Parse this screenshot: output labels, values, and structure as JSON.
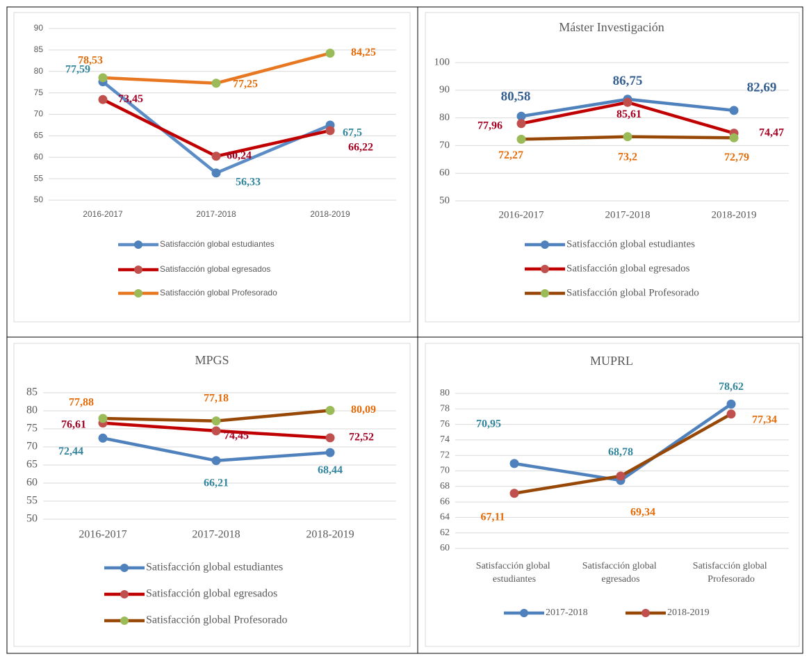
{
  "chart_data": [
    {
      "type": "line",
      "legend": "bottom",
      "categories": [
        "2016-2017",
        "2017-2018",
        "2018-2019"
      ],
      "ylim": [
        50,
        90
      ],
      "yticks": [
        50,
        55,
        60,
        65,
        70,
        75,
        80,
        85,
        90
      ],
      "grid": true,
      "series": [
        {
          "name": "Satisfacción global estudiantes",
          "color": "#5b8cc6",
          "marker_color": "#4f81bd",
          "label_color": "#31859c",
          "values": [
            77.59,
            56.33,
            67.5
          ],
          "value_labels": [
            "77,59",
            "56,33",
            "67,5"
          ]
        },
        {
          "name": "Satisfacción global egresados",
          "color": "#c00000",
          "marker_color": "#c0504d",
          "label_color": "#a50021",
          "values": [
            73.45,
            60.24,
            66.22
          ],
          "value_labels": [
            "73,45",
            "60,24",
            "66,22"
          ]
        },
        {
          "name": "Satisfacción global Profesorado",
          "color": "#e87722",
          "marker_color": "#9bbb59",
          "label_color": "#e36c09",
          "values": [
            78.53,
            77.25,
            84.25
          ],
          "value_labels": [
            "78,53",
            "77,25",
            "84,25"
          ]
        }
      ]
    },
    {
      "type": "line",
      "title": "Máster Investigación",
      "legend": "bottom",
      "categories": [
        "2016-2017",
        "2017-2018",
        "2018-2019"
      ],
      "ylim": [
        50,
        100
      ],
      "yticks": [
        50,
        60,
        70,
        80,
        90,
        100
      ],
      "grid": true,
      "series": [
        {
          "name": "Satisfacción global estudiantes",
          "color": "#4f81bd",
          "marker_color": "#4f81bd",
          "label_color": "#365f91",
          "values": [
            80.58,
            86.75,
            82.69
          ],
          "value_labels": [
            "80,58",
            "86,75",
            "82,69"
          ]
        },
        {
          "name": "Satisfacción global egresados",
          "color": "#c00000",
          "marker_color": "#c0504d",
          "label_color": "#a50021",
          "values": [
            77.96,
            85.61,
            74.47
          ],
          "value_labels": [
            "77,96",
            "85,61",
            "74,47"
          ]
        },
        {
          "name": "Satisfacción global Profesorado",
          "color": "#974706",
          "marker_color": "#9bbb59",
          "label_color": "#e36c09",
          "values": [
            72.27,
            73.2,
            72.79
          ],
          "value_labels": [
            "72,27",
            "73,2",
            "72,79"
          ]
        }
      ]
    },
    {
      "type": "line",
      "title": "MPGS",
      "legend": "bottom",
      "categories": [
        "2016-2017",
        "2017-2018",
        "2018-2019"
      ],
      "ylim": [
        50,
        85
      ],
      "yticks": [
        50,
        55,
        60,
        65,
        70,
        75,
        80,
        85
      ],
      "grid": true,
      "series": [
        {
          "name": "Satisfacción global estudiantes",
          "color": "#4f81bd",
          "marker_color": "#4f81bd",
          "label_color": "#31859c",
          "values": [
            72.44,
            66.21,
            68.44
          ],
          "value_labels": [
            "72,44",
            "66,21",
            "68,44"
          ]
        },
        {
          "name": "Satisfacción global egresados",
          "color": "#c00000",
          "marker_color": "#c0504d",
          "label_color": "#a50021",
          "values": [
            76.61,
            74.45,
            72.52
          ],
          "value_labels": [
            "76,61",
            "74,45",
            "72,52"
          ]
        },
        {
          "name": "Satisfacción global Profesorado",
          "color": "#974706",
          "marker_color": "#9bbb59",
          "label_color": "#e36c09",
          "values": [
            77.88,
            77.18,
            80.09
          ],
          "value_labels": [
            "77,88",
            "77,18",
            "80,09"
          ]
        }
      ]
    },
    {
      "type": "line",
      "title": "MUPRL",
      "legend": "bottom-row",
      "categories": [
        "Satisfacción global estudiantes",
        "Satisfacción global egresados",
        "Satisfacción global Profesorado"
      ],
      "ylim": [
        60,
        80
      ],
      "yticks": [
        60,
        62,
        64,
        66,
        68,
        70,
        72,
        74,
        76,
        78,
        80
      ],
      "grid": true,
      "series": [
        {
          "name": "2017-2018",
          "color": "#4f81bd",
          "marker_color": "#4f81bd",
          "label_color": "#31859c",
          "values": [
            70.95,
            68.78,
            78.62
          ],
          "value_labels": [
            "70,95",
            "68,78",
            "78,62"
          ]
        },
        {
          "name": "2018-2019",
          "color": "#974706",
          "marker_color": "#c0504d",
          "label_color": "#e36c09",
          "values": [
            67.11,
            69.34,
            77.34
          ],
          "value_labels": [
            "67,11",
            "69,34",
            "77,34"
          ]
        }
      ]
    }
  ]
}
